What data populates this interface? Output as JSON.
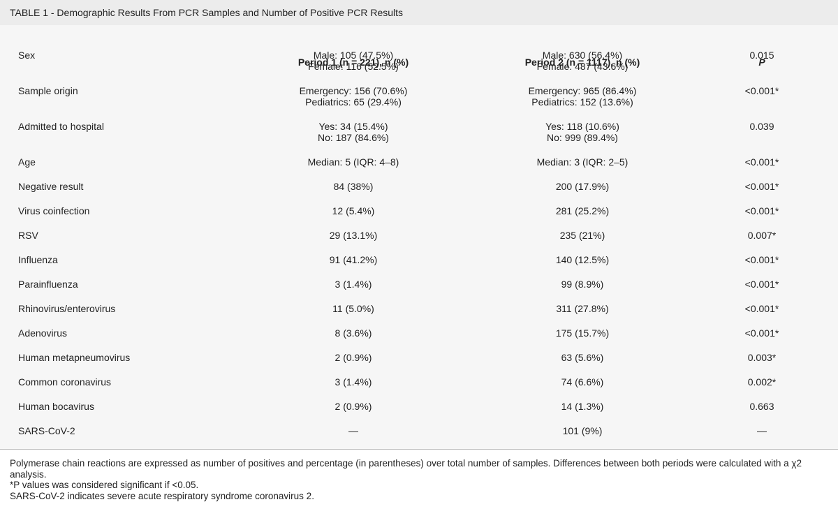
{
  "caption": "TABLE 1 - Demographic Results From PCR Samples and Number of Positive PCR Results",
  "headers": {
    "period1": "Period 1 (n = 221), n (%)",
    "period2": "Period 2 (n = 1117), n (%)",
    "p": "P"
  },
  "rows": [
    {
      "label": "Sex",
      "p1": [
        "Male: 105 (47.5%)",
        "Female: 116 (52.5%)"
      ],
      "p2": [
        "Male: 630 (56.4%)",
        "Female: 487 (43.6%)"
      ],
      "p": "0.015"
    },
    {
      "label": "Sample origin",
      "p1": [
        "Emergency: 156 (70.6%)",
        "Pediatrics: 65 (29.4%)"
      ],
      "p2": [
        "Emergency: 965 (86.4%)",
        "Pediatrics: 152 (13.6%)"
      ],
      "p": "<0.001*"
    },
    {
      "label": "Admitted to hospital",
      "p1": [
        "Yes: 34 (15.4%)",
        "No: 187 (84.6%)"
      ],
      "p2": [
        "Yes: 118 (10.6%)",
        "No: 999 (89.4%)"
      ],
      "p": "0.039"
    },
    {
      "label": "Age",
      "p1": [
        "Median: 5 (IQR: 4–8)"
      ],
      "p2": [
        "Median: 3 (IQR: 2–5)"
      ],
      "p": "<0.001*"
    },
    {
      "label": "Negative result",
      "p1": [
        "84 (38%)"
      ],
      "p2": [
        "200 (17.9%)"
      ],
      "p": "<0.001*"
    },
    {
      "label": "Virus coinfection",
      "p1": [
        "12 (5.4%)"
      ],
      "p2": [
        "281 (25.2%)"
      ],
      "p": "<0.001*"
    },
    {
      "label": "RSV",
      "p1": [
        "29 (13.1%)"
      ],
      "p2": [
        "235 (21%)"
      ],
      "p": "0.007*"
    },
    {
      "label": "Influenza",
      "p1": [
        "91 (41.2%)"
      ],
      "p2": [
        "140 (12.5%)"
      ],
      "p": "<0.001*"
    },
    {
      "label": "Parainfluenza",
      "p1": [
        "3 (1.4%)"
      ],
      "p2": [
        "99 (8.9%)"
      ],
      "p": "<0.001*"
    },
    {
      "label": "Rhinovirus/enterovirus",
      "p1": [
        "11 (5.0%)"
      ],
      "p2": [
        "311 (27.8%)"
      ],
      "p": "<0.001*"
    },
    {
      "label": "Adenovirus",
      "p1": [
        "8 (3.6%)"
      ],
      "p2": [
        "175 (15.7%)"
      ],
      "p": "<0.001*"
    },
    {
      "label": "Human metapneumovirus",
      "p1": [
        "2 (0.9%)"
      ],
      "p2": [
        "63 (5.6%)"
      ],
      "p": "0.003*"
    },
    {
      "label": "Common coronavirus",
      "p1": [
        "3 (1.4%)"
      ],
      "p2": [
        "74 (6.6%)"
      ],
      "p": "0.002*"
    },
    {
      "label": "Human bocavirus",
      "p1": [
        "2 (0.9%)"
      ],
      "p2": [
        "14 (1.3%)"
      ],
      "p": "0.663"
    },
    {
      "label": "SARS-CoV-2",
      "p1": [
        "—"
      ],
      "p2": [
        "101 (9%)"
      ],
      "p": "—"
    }
  ],
  "footnotes": [
    "Polymerase chain reactions are expressed as number of positives and percentage (in parentheses) over total number of samples. Differences between both periods were calculated with a χ2 analysis.",
    "*P values was considered significant if <0.05.",
    "SARS-CoV-2 indicates severe acute respiratory syndrome coronavirus 2."
  ]
}
